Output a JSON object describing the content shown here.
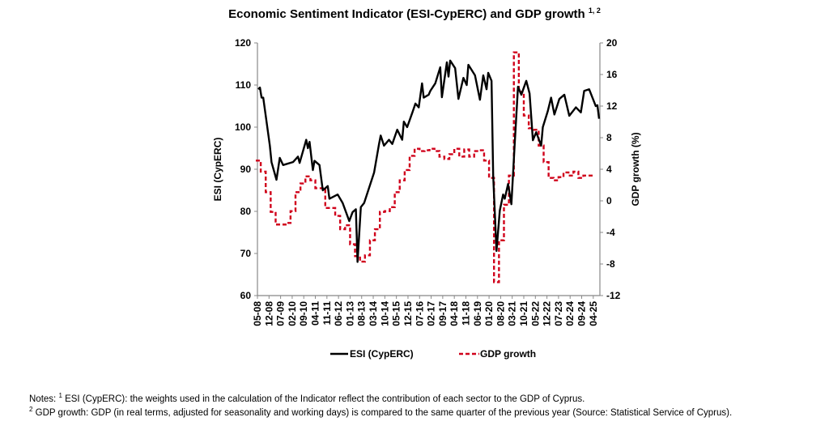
{
  "chart_data": {
    "type": "line",
    "title": "Economic Sentiment Indicator (ESI-CypERC) and GDP growth",
    "title_superscript": "1, 2",
    "grid": false,
    "legend_placement": "bottom",
    "y_left": {
      "label": "ESI (CypERC)",
      "lim": [
        60,
        120
      ],
      "ticks": [
        60,
        70,
        80,
        90,
        100,
        110,
        120
      ]
    },
    "y_right": {
      "label": "GDP growth (%)",
      "lim": [
        -12,
        20
      ],
      "ticks": [
        -12,
        -8,
        -4,
        0,
        4,
        8,
        12,
        16,
        20
      ]
    },
    "x_ticks": [
      "05-08",
      "12-08",
      "07-09",
      "02-10",
      "09-10",
      "04-11",
      "11-11",
      "06-12",
      "01-13",
      "08-13",
      "03-14",
      "10-14",
      "05-15",
      "12-15",
      "07-16",
      "02-17",
      "09-17",
      "04-18",
      "11-18",
      "06-19",
      "01-20",
      "08-20",
      "03-21",
      "10-21",
      "05-22",
      "12-22",
      "07-23",
      "02-24",
      "09-24",
      "04-25"
    ],
    "x_range": [
      "05-08",
      "07-25"
    ],
    "series": [
      {
        "name": "ESI (CypERC)",
        "axis": "left",
        "color": "#000000",
        "style": "solid",
        "points": [
          [
            "05-08",
            109.0
          ],
          [
            "06-08",
            109.4
          ],
          [
            "07-08",
            107
          ],
          [
            "08-08",
            107
          ],
          [
            "12-08",
            95.6
          ],
          [
            "01-09",
            91.7
          ],
          [
            "04-09",
            87.5
          ],
          [
            "06-09",
            92.7
          ],
          [
            "08-09",
            91
          ],
          [
            "02-10",
            91.7
          ],
          [
            "05-10",
            93
          ],
          [
            "06-10",
            91.5
          ],
          [
            "10-10",
            97
          ],
          [
            "11-10",
            95
          ],
          [
            "12-10",
            96.5
          ],
          [
            "02-11",
            89.8
          ],
          [
            "03-11",
            92
          ],
          [
            "06-11",
            91
          ],
          [
            "08-11",
            85
          ],
          [
            "11-11",
            86
          ],
          [
            "12-11",
            83
          ],
          [
            "05-12",
            84
          ],
          [
            "08-12",
            82
          ],
          [
            "12-12",
            77.7
          ],
          [
            "02-13",
            79.8
          ],
          [
            "04-13",
            80.5
          ],
          [
            "05-13",
            68
          ],
          [
            "07-13",
            81
          ],
          [
            "09-13",
            82
          ],
          [
            "12-13",
            85.6
          ],
          [
            "03-14",
            89.2
          ],
          [
            "06-14",
            96
          ],
          [
            "07-14",
            98
          ],
          [
            "09-14",
            95.6
          ],
          [
            "12-14",
            97
          ],
          [
            "02-15",
            96
          ],
          [
            "05-15",
            99.4
          ],
          [
            "08-15",
            97
          ],
          [
            "09-15",
            101.3
          ],
          [
            "11-15",
            100
          ],
          [
            "02-16",
            103.3
          ],
          [
            "04-16",
            105.6
          ],
          [
            "06-16",
            104.7
          ],
          [
            "08-16",
            110.4
          ],
          [
            "09-16",
            107
          ],
          [
            "12-16",
            107.7
          ],
          [
            "01-17",
            108.6
          ],
          [
            "04-17",
            110.4
          ],
          [
            "07-17",
            114.2
          ],
          [
            "08-17",
            107.1
          ],
          [
            "11-17",
            115.4
          ],
          [
            "12-17",
            112
          ],
          [
            "01-18",
            115.8
          ],
          [
            "04-18",
            114
          ],
          [
            "06-18",
            106.7
          ],
          [
            "09-18",
            111.7
          ],
          [
            "11-18",
            110
          ],
          [
            "12-18",
            114.8
          ],
          [
            "04-19",
            112.3
          ],
          [
            "07-19",
            106.5
          ],
          [
            "09-19",
            112.3
          ],
          [
            "11-19",
            109
          ],
          [
            "12-19",
            112.9
          ],
          [
            "02-20",
            111
          ],
          [
            "03-20",
            88.5
          ],
          [
            "05-20",
            70.6
          ],
          [
            "07-20",
            80.2
          ],
          [
            "09-20",
            84
          ],
          [
            "10-20",
            83
          ],
          [
            "12-20",
            86.5
          ],
          [
            "02-21",
            81.7
          ],
          [
            "04-21",
            96
          ],
          [
            "06-21",
            109.6
          ],
          [
            "08-21",
            107.7
          ],
          [
            "11-21",
            111
          ],
          [
            "01-22",
            108
          ],
          [
            "03-22",
            96.9
          ],
          [
            "05-22",
            98.8
          ],
          [
            "08-22",
            95.6
          ],
          [
            "09-22",
            100
          ],
          [
            "12-22",
            103.8
          ],
          [
            "02-23",
            107
          ],
          [
            "04-23",
            103
          ],
          [
            "07-23",
            106.7
          ],
          [
            "10-23",
            107.7
          ],
          [
            "01-24",
            102.7
          ],
          [
            "05-24",
            104.7
          ],
          [
            "08-24",
            103.5
          ],
          [
            "10-24",
            108.6
          ],
          [
            "01-25",
            109
          ],
          [
            "05-25",
            105
          ],
          [
            "06-25",
            105.2
          ],
          [
            "07-25",
            102
          ]
        ]
      },
      {
        "name": "GDP growth",
        "axis": "right",
        "color": "#d0021b",
        "style": "dashed",
        "quarters": [
          "2008Q2",
          "2008Q3",
          "2008Q4",
          "2009Q1",
          "2009Q2",
          "2009Q3",
          "2009Q4",
          "2010Q1",
          "2010Q2",
          "2010Q3",
          "2010Q4",
          "2011Q1",
          "2011Q2",
          "2011Q3",
          "2011Q4",
          "2012Q1",
          "2012Q2",
          "2012Q3",
          "2012Q4",
          "2013Q1",
          "2013Q2",
          "2013Q3",
          "2013Q4",
          "2014Q1",
          "2014Q2",
          "2014Q3",
          "2014Q4",
          "2015Q1",
          "2015Q2",
          "2015Q3",
          "2015Q4",
          "2016Q1",
          "2016Q2",
          "2016Q3",
          "2016Q4",
          "2017Q1",
          "2017Q2",
          "2017Q3",
          "2017Q4",
          "2018Q1",
          "2018Q2",
          "2018Q3",
          "2018Q4",
          "2019Q1",
          "2019Q2",
          "2019Q3",
          "2019Q4",
          "2020Q1",
          "2020Q2",
          "2020Q3",
          "2020Q4",
          "2021Q1",
          "2021Q2",
          "2021Q3",
          "2021Q4",
          "2022Q1",
          "2022Q2",
          "2022Q3",
          "2022Q4",
          "2023Q1",
          "2023Q2",
          "2023Q3",
          "2023Q4",
          "2024Q1",
          "2024Q2",
          "2024Q3",
          "2024Q4",
          "2025Q1"
        ],
        "values": [
          5.1,
          3.7,
          1.1,
          -1.4,
          -3.0,
          -3.0,
          -2.8,
          -1.3,
          1.1,
          2.2,
          3.1,
          2.6,
          1.6,
          1.6,
          -0.9,
          -0.9,
          -1.9,
          -3.6,
          -3.1,
          -5.5,
          -7.0,
          -7.7,
          -6.9,
          -5.0,
          -3.6,
          -1.4,
          -1.3,
          -0.8,
          1.1,
          2.6,
          3.9,
          5.7,
          6.6,
          6.3,
          6.4,
          6.6,
          6.3,
          5.6,
          5.3,
          5.9,
          6.6,
          5.6,
          6.5,
          5.6,
          6.3,
          6.4,
          5.1,
          2.9,
          -10.3,
          -5.0,
          -0.5,
          3.2,
          18.8,
          13.8,
          10.8,
          9.2,
          9.0,
          7.0,
          4.9,
          2.9,
          2.6,
          3.0,
          3.6,
          3.2,
          3.7,
          2.9,
          3.2,
          3.2
        ]
      }
    ]
  },
  "notes": {
    "prefix": "Notes: ",
    "note1_mark": "1",
    "note1": " ESI (CypERC): the weights used in the calculation of the Indicator reflect the contribution of each sector to the GDP of Cyprus.",
    "note2_mark": "2",
    "note2": " GDP growth: GDP (in real terms, adjusted for seasonality and working days) is compared to the same quarter of the previous year (Source: Statistical Service of Cyprus)."
  }
}
